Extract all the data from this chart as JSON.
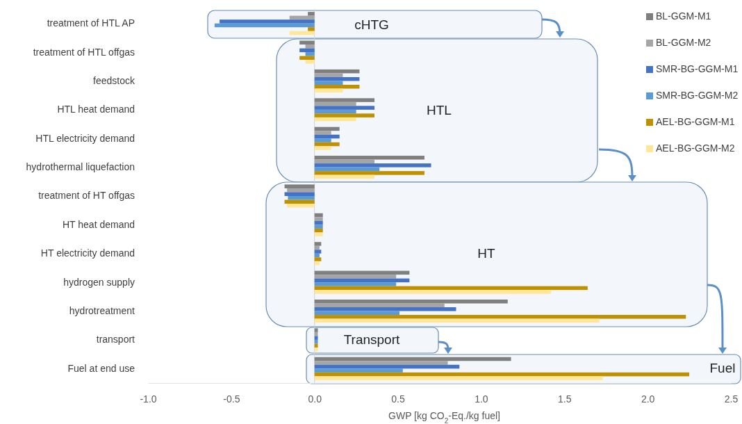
{
  "chart_data": {
    "type": "bar",
    "orientation": "horizontal",
    "xlabel": "GWP [kg CO$_{2}$-Eq./kg fuel]",
    "categories": [
      "treatment of HTL AP",
      "treatment of HTL offgas",
      "feedstock",
      "HTL heat demand",
      "HTL electricity demand",
      "hydrothermal liquefaction",
      "treatment of HT offgas",
      "HT heat demand",
      "HT electricity demand",
      "hydrogen supply",
      "hydrotreatment",
      "transport",
      "Fuel at end use"
    ],
    "series": [
      {
        "name": "BL-GGM-M1",
        "color": "#7f7f7f",
        "values": [
          -0.04,
          -0.09,
          0.27,
          0.36,
          0.15,
          0.66,
          -0.18,
          0.05,
          0.04,
          0.57,
          1.16,
          0.02,
          1.18
        ]
      },
      {
        "name": "BL-GGM-M2",
        "color": "#a5a5a5",
        "values": [
          -0.15,
          -0.055,
          0.17,
          0.25,
          0.1,
          0.36,
          -0.165,
          0.05,
          0.03,
          0.49,
          0.78,
          0.02,
          0.8
        ]
      },
      {
        "name": "SMR-BG-GGM-M1",
        "color": "#4472c4",
        "values": [
          -0.57,
          -0.09,
          0.27,
          0.36,
          0.15,
          0.7,
          -0.18,
          0.05,
          0.04,
          0.57,
          0.85,
          0.02,
          0.87
        ]
      },
      {
        "name": "SMR-BG-GGM-M2",
        "color": "#5b9bd5",
        "values": [
          -0.6,
          -0.055,
          0.17,
          0.25,
          0.1,
          0.39,
          -0.16,
          0.05,
          0.03,
          0.49,
          0.51,
          0.02,
          0.53
        ]
      },
      {
        "name": "AEL-BG-GGM-M1",
        "color": "#bf9000",
        "values": [
          -0.04,
          -0.09,
          0.27,
          0.36,
          0.15,
          0.66,
          -0.18,
          0.05,
          0.04,
          1.64,
          2.23,
          0.02,
          2.25
        ]
      },
      {
        "name": "AEL-BG-GGM-M2",
        "color": "#ffe699",
        "values": [
          -0.15,
          -0.055,
          0.17,
          0.25,
          0.1,
          0.36,
          -0.165,
          0.05,
          0.03,
          1.42,
          1.71,
          0.02,
          1.73
        ]
      }
    ],
    "xlim": [
      -1,
      2.5
    ],
    "xticks": [
      {
        "value": -1,
        "label": "-1.0"
      },
      {
        "value": -0.5,
        "label": "-0.5"
      },
      {
        "value": 0,
        "label": "0.0"
      },
      {
        "value": 0.5,
        "label": "0.5"
      },
      {
        "value": 1,
        "label": "1.0"
      },
      {
        "value": 1.5,
        "label": "1.5"
      },
      {
        "value": 2,
        "label": "2.0"
      },
      {
        "value": 2.5,
        "label": "2.5"
      }
    ],
    "annotations": [
      "cHTG",
      "HTL",
      "HT",
      "Transport",
      "Fuel"
    ],
    "legend": "top right"
  }
}
